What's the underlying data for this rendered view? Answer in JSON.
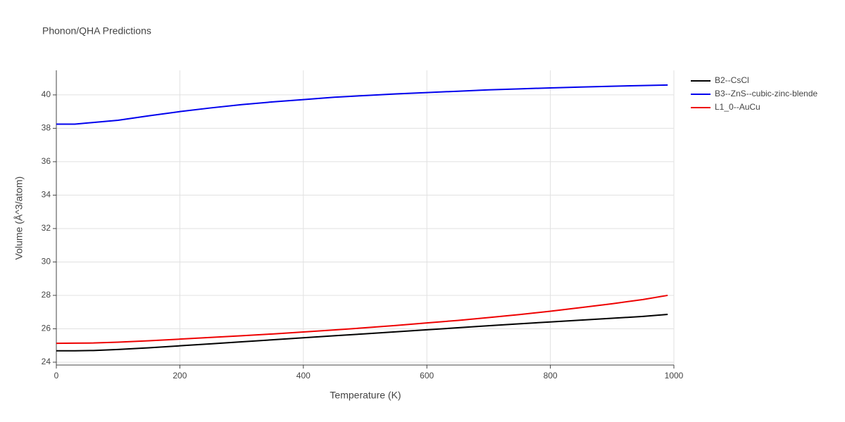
{
  "chart_data": {
    "type": "line",
    "title": "Phonon/QHA Predictions",
    "x_label": "Temperature (K)",
    "y_label": "Volume (Å^3/atom)",
    "x": [
      0,
      30,
      60,
      100,
      150,
      200,
      250,
      300,
      350,
      400,
      450,
      500,
      550,
      600,
      650,
      700,
      750,
      800,
      850,
      900,
      950,
      990
    ],
    "series": [
      {
        "name": "B2--CsCl",
        "color": "#000000",
        "values": [
          24.68,
          24.68,
          24.7,
          24.76,
          24.86,
          24.98,
          25.1,
          25.22,
          25.34,
          25.46,
          25.58,
          25.7,
          25.82,
          25.94,
          26.06,
          26.18,
          26.3,
          26.41,
          26.52,
          26.63,
          26.74,
          26.86
        ]
      },
      {
        "name": "B3--ZnS--cubic-zinc-blende",
        "color": "#0000ee",
        "values": [
          38.25,
          38.25,
          38.35,
          38.48,
          38.75,
          39.0,
          39.22,
          39.42,
          39.58,
          39.72,
          39.86,
          39.96,
          40.06,
          40.14,
          40.22,
          40.3,
          40.36,
          40.42,
          40.47,
          40.52,
          40.56,
          40.59
        ]
      },
      {
        "name": "L1_0--AuCu",
        "color": "#ee0000",
        "values": [
          25.13,
          25.14,
          25.15,
          25.2,
          25.28,
          25.38,
          25.48,
          25.58,
          25.69,
          25.81,
          25.93,
          26.06,
          26.2,
          26.35,
          26.5,
          26.67,
          26.85,
          27.05,
          27.27,
          27.5,
          27.75,
          28.0
        ]
      }
    ],
    "xlim": [
      0,
      1000
    ],
    "xticks": [
      0,
      200,
      400,
      600,
      800,
      1000
    ],
    "ylim": [
      23.83,
      41.47
    ],
    "yticks": [
      24,
      26,
      28,
      30,
      32,
      34,
      36,
      38,
      40
    ],
    "grid": true
  }
}
